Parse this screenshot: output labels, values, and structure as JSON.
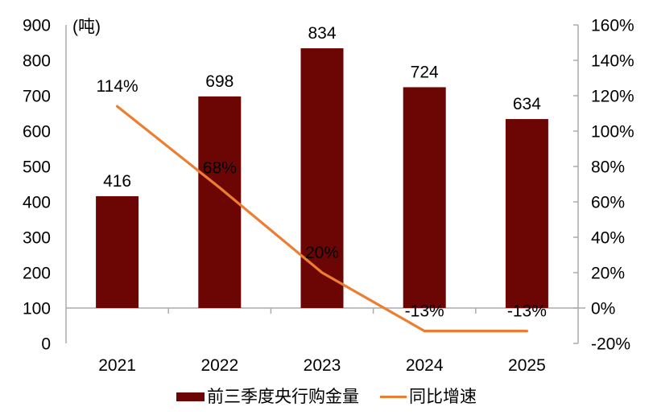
{
  "chart_data": {
    "type": "bar+line",
    "unit_label": "(吨)",
    "categories": [
      "2021",
      "2022",
      "2023",
      "2024",
      "2025"
    ],
    "series": [
      {
        "name": "前三季度央行购金量",
        "type": "bar",
        "axis": "left",
        "color": "#6C0605",
        "values": [
          416,
          698,
          834,
          724,
          634
        ],
        "data_labels": [
          "416",
          "698",
          "834",
          "724",
          "634"
        ]
      },
      {
        "name": "同比增速",
        "type": "line",
        "axis": "right",
        "color": "#ED7D31",
        "values_pct": [
          114,
          68,
          20,
          -13,
          -13
        ],
        "data_labels": [
          "114%",
          "68%",
          "20%",
          "-13%",
          "-13%"
        ]
      }
    ],
    "left_axis": {
      "min": 0,
      "max": 900,
      "step": 100,
      "tick_labels": [
        "0",
        "100",
        "200",
        "300",
        "400",
        "500",
        "600",
        "700",
        "800",
        "900"
      ]
    },
    "right_axis": {
      "min": -20,
      "max": 160,
      "step": 20,
      "tick_labels": [
        "-20%",
        "0%",
        "20%",
        "40%",
        "60%",
        "80%",
        "100%",
        "120%",
        "140%",
        "160%"
      ]
    },
    "layout": {
      "legend_position": "bottom",
      "grid": "off",
      "bar_baseline_right_value": 0,
      "axis_color": "#ABABAB",
      "text_color": "#000000",
      "background": "#FFFFFF"
    }
  }
}
